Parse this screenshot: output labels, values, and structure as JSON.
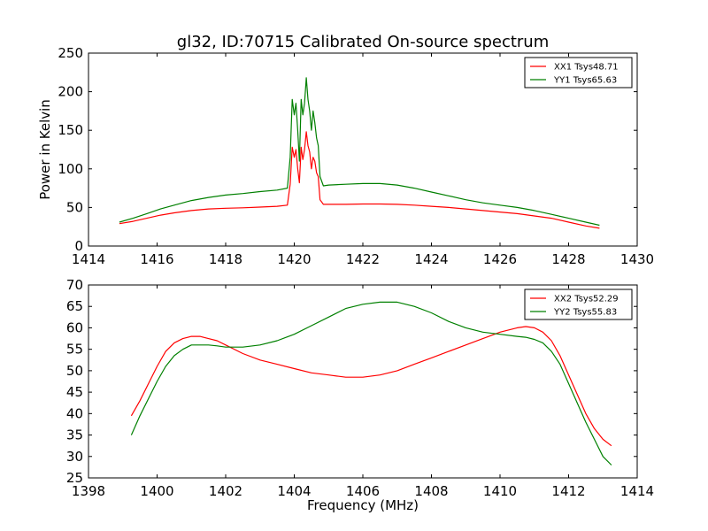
{
  "figure_title": "gl32, ID:70715 Calibrated On-source spectrum",
  "chart_data": [
    {
      "type": "line",
      "title": "gl32, ID:70715 Calibrated On-source spectrum",
      "xlabel": "",
      "ylabel": "Power in Kelvin",
      "xlim": [
        1414,
        1430
      ],
      "ylim": [
        0,
        250
      ],
      "xticks": [
        "1414",
        "1416",
        "1418",
        "1420",
        "1422",
        "1424",
        "1426",
        "1428",
        "1430"
      ],
      "yticks": [
        "0",
        "50",
        "100",
        "150",
        "200",
        "250"
      ],
      "grid": false,
      "legend_position": "top-right",
      "series": [
        {
          "name": "XX1 Tsys48.71",
          "color": "#ff0000",
          "x": [
            1414.9,
            1415.3,
            1415.7,
            1416.1,
            1416.5,
            1417.0,
            1417.5,
            1418.0,
            1418.5,
            1419.0,
            1419.5,
            1419.8,
            1419.88,
            1419.94,
            1420.0,
            1420.05,
            1420.1,
            1420.15,
            1420.2,
            1420.25,
            1420.3,
            1420.35,
            1420.4,
            1420.45,
            1420.5,
            1420.55,
            1420.6,
            1420.65,
            1420.7,
            1420.75,
            1420.85,
            1421.0,
            1421.5,
            1422.0,
            1422.5,
            1423.0,
            1423.5,
            1424.0,
            1424.5,
            1425.0,
            1425.5,
            1426.0,
            1426.5,
            1427.0,
            1427.5,
            1428.0,
            1428.5,
            1428.9
          ],
          "y": [
            29,
            32,
            36,
            40,
            43,
            46,
            48,
            49,
            49.5,
            50.5,
            51.5,
            53,
            80,
            128,
            115,
            125,
            100,
            82,
            128,
            112,
            125,
            148,
            130,
            122,
            100,
            115,
            110,
            95,
            90,
            60,
            54,
            54,
            54,
            54.5,
            54.5,
            54,
            53,
            51.5,
            50,
            48,
            46,
            44,
            42,
            39,
            36,
            31,
            26,
            23
          ]
        },
        {
          "name": "YY1 Tsys65.63",
          "color": "#008000",
          "x": [
            1414.9,
            1415.3,
            1415.7,
            1416.1,
            1416.5,
            1417.0,
            1417.5,
            1418.0,
            1418.5,
            1419.0,
            1419.5,
            1419.8,
            1419.88,
            1419.94,
            1420.0,
            1420.05,
            1420.1,
            1420.15,
            1420.2,
            1420.25,
            1420.3,
            1420.35,
            1420.4,
            1420.45,
            1420.5,
            1420.55,
            1420.6,
            1420.65,
            1420.7,
            1420.75,
            1420.85,
            1421.0,
            1421.5,
            1422.0,
            1422.5,
            1423.0,
            1423.5,
            1424.0,
            1424.5,
            1425.0,
            1425.5,
            1426.0,
            1426.5,
            1427.0,
            1427.5,
            1428.0,
            1428.5,
            1428.9
          ],
          "y": [
            31,
            36,
            42,
            48,
            53,
            59,
            63,
            66,
            68,
            70.5,
            72.5,
            75,
            115,
            190,
            170,
            185,
            150,
            110,
            190,
            170,
            185,
            218,
            190,
            175,
            150,
            175,
            160,
            140,
            130,
            90,
            78,
            79,
            80,
            81,
            81,
            79,
            75,
            70,
            65,
            60,
            56,
            53,
            50,
            46,
            41,
            36,
            31,
            27
          ]
        }
      ]
    },
    {
      "type": "line",
      "title": "",
      "xlabel": "Frequency (MHz)",
      "ylabel": "",
      "xlim": [
        1398,
        1414
      ],
      "ylim": [
        25,
        70
      ],
      "xticks": [
        "1398",
        "1400",
        "1402",
        "1404",
        "1406",
        "1408",
        "1410",
        "1412",
        "1414"
      ],
      "yticks": [
        "25",
        "30",
        "35",
        "40",
        "45",
        "50",
        "55",
        "60",
        "65",
        "70"
      ],
      "grid": false,
      "legend_position": "top-right",
      "series": [
        {
          "name": "XX2 Tsys52.29",
          "color": "#ff0000",
          "x": [
            1399.25,
            1399.5,
            1399.75,
            1400.0,
            1400.25,
            1400.5,
            1400.75,
            1401.0,
            1401.25,
            1401.5,
            1401.75,
            1402.0,
            1402.5,
            1403.0,
            1403.5,
            1404.0,
            1404.5,
            1405.0,
            1405.5,
            1406.0,
            1406.5,
            1407.0,
            1407.5,
            1408.0,
            1408.5,
            1409.0,
            1409.5,
            1410.0,
            1410.5,
            1410.75,
            1411.0,
            1411.25,
            1411.5,
            1411.75,
            1412.0,
            1412.25,
            1412.5,
            1412.75,
            1413.0,
            1413.25
          ],
          "y": [
            39.5,
            43,
            47,
            51,
            54.5,
            56.5,
            57.5,
            58,
            58,
            57.5,
            57,
            56,
            54,
            52.5,
            51.5,
            50.5,
            49.5,
            49,
            48.5,
            48.5,
            49,
            50,
            51.5,
            53,
            54.5,
            56,
            57.5,
            59,
            60,
            60.3,
            60,
            59,
            57,
            53.5,
            49,
            44.5,
            40,
            36.5,
            34,
            32.5
          ]
        },
        {
          "name": "YY2 Tsys55.83",
          "color": "#008000",
          "x": [
            1399.25,
            1399.5,
            1399.75,
            1400.0,
            1400.25,
            1400.5,
            1400.75,
            1401.0,
            1401.25,
            1401.5,
            1401.75,
            1402.0,
            1402.5,
            1403.0,
            1403.5,
            1404.0,
            1404.5,
            1405.0,
            1405.5,
            1406.0,
            1406.5,
            1407.0,
            1407.5,
            1408.0,
            1408.5,
            1409.0,
            1409.5,
            1410.0,
            1410.5,
            1410.75,
            1411.0,
            1411.25,
            1411.5,
            1411.75,
            1412.0,
            1412.25,
            1412.5,
            1412.75,
            1413.0,
            1413.25
          ],
          "y": [
            35,
            39.5,
            43.5,
            47.5,
            51,
            53.5,
            55,
            56,
            56,
            56,
            55.8,
            55.5,
            55.5,
            56,
            57,
            58.5,
            60.5,
            62.5,
            64.5,
            65.5,
            66,
            66,
            65,
            63.5,
            61.5,
            60,
            59,
            58.5,
            58,
            57.8,
            57.3,
            56.5,
            54.5,
            51.5,
            47,
            42.5,
            38,
            34,
            30,
            28
          ]
        }
      ]
    }
  ]
}
